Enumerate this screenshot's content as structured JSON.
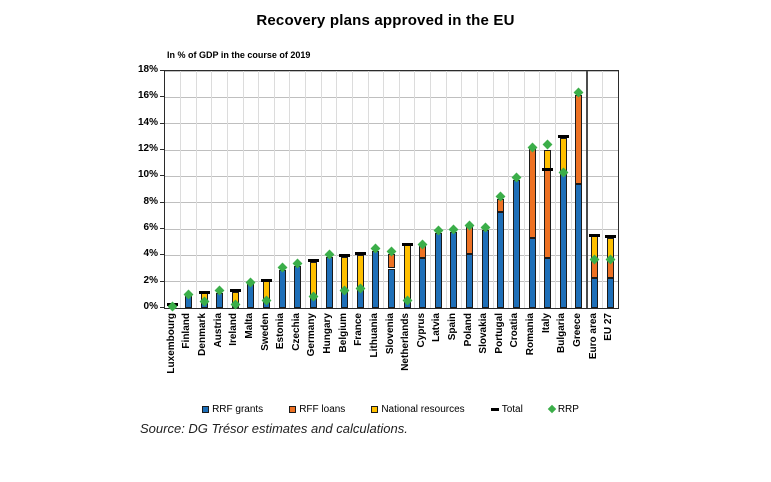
{
  "title": "Recovery plans approved in the EU",
  "subtitle": "In % of GDP in the course of 2019",
  "source": "Source: DG Trésor estimates and calculations.",
  "colors": {
    "grants_blue": "#1e6fb8",
    "loans_orange": "#ed7123",
    "national_yellow": "#ffc000",
    "total_black": "#000000",
    "rrp_green": "#3bae49",
    "grid_gray": "#bfbfbf",
    "separator_gray": "#4d4d4d"
  },
  "legend": [
    {
      "label": "RRF grants",
      "swatch": "square",
      "color": "#1e6fb8"
    },
    {
      "label": "RFF loans",
      "swatch": "square",
      "color": "#ed7123"
    },
    {
      "label": "National resources",
      "swatch": "square",
      "color": "#ffc000"
    },
    {
      "label": "Total",
      "swatch": "dash",
      "color": "#000000"
    },
    {
      "label": "RRP",
      "swatch": "diamond",
      "color": "#3bae49"
    }
  ],
  "chart_data": {
    "type": "bar",
    "stacked": true,
    "unit": "% of GDP",
    "ylim": [
      0,
      18
    ],
    "ytick_step": 2,
    "ytick_labels": [
      "0%",
      "2%",
      "4%",
      "6%",
      "8%",
      "10%",
      "12%",
      "14%",
      "16%",
      "18%"
    ],
    "grid": true,
    "legend_position": "bottom",
    "separator_after_index": 26,
    "categories": [
      "Luxembourg",
      "Finland",
      "Denmark",
      "Austria",
      "Ireland",
      "Malta",
      "Sweden",
      "Estonia",
      "Czechia",
      "Germany",
      "Hungary",
      "Belgium",
      "France",
      "Lithuania",
      "Slovenia",
      "Netherlands",
      "Cyprus",
      "Latvia",
      "Spain",
      "Poland",
      "Slovakia",
      "Portugal",
      "Croatia",
      "Romania",
      "Italy",
      "Bulgaria",
      "Greece",
      "Euro area",
      "EU 27"
    ],
    "series": [
      {
        "name": "RRF grants",
        "color": "#1e6fb8",
        "values": [
          0.15,
          0.9,
          0.6,
          1.15,
          0.35,
          1.8,
          0.6,
          2.9,
          3.2,
          0.9,
          3.9,
          1.3,
          1.55,
          4.3,
          3.0,
          0.65,
          3.8,
          5.7,
          5.8,
          4.1,
          5.9,
          7.3,
          9.7,
          5.3,
          3.8,
          10.4,
          9.4,
          2.3,
          2.3
        ]
      },
      {
        "name": "RFF loans",
        "color": "#ed7123",
        "values": [
          0,
          0,
          0,
          0,
          0,
          0,
          0,
          0,
          0,
          0,
          0,
          0,
          0,
          0,
          1.1,
          0,
          0.9,
          0,
          0,
          2.1,
          0,
          1.0,
          0,
          6.9,
          6.7,
          0,
          6.8,
          1.4,
          1.3
        ]
      },
      {
        "name": "National resources",
        "color": "#ffc000",
        "values": [
          0.1,
          0,
          0.55,
          0,
          0.9,
          0,
          1.45,
          0,
          0,
          2.6,
          0,
          2.6,
          2.5,
          0,
          0,
          4.1,
          0,
          0,
          0,
          0,
          0,
          0,
          0,
          0,
          1.5,
          2.5,
          0,
          1.8,
          1.7
        ]
      }
    ],
    "total_markers": [
      0.3,
      null,
      1.2,
      null,
      1.3,
      null,
      2.1,
      null,
      null,
      3.6,
      null,
      4.0,
      4.15,
      null,
      null,
      4.85,
      null,
      null,
      null,
      null,
      null,
      null,
      null,
      null,
      10.5,
      13.0,
      null,
      5.5,
      5.4
    ],
    "rrp_markers": [
      0.1,
      1.0,
      0.5,
      1.3,
      0.25,
      1.95,
      0.6,
      3.1,
      3.4,
      0.9,
      4.1,
      1.3,
      1.5,
      4.5,
      4.3,
      0.6,
      4.8,
      5.9,
      6.0,
      6.3,
      6.1,
      8.5,
      9.9,
      12.2,
      12.4,
      10.3,
      16.4,
      3.7,
      3.65
    ]
  }
}
